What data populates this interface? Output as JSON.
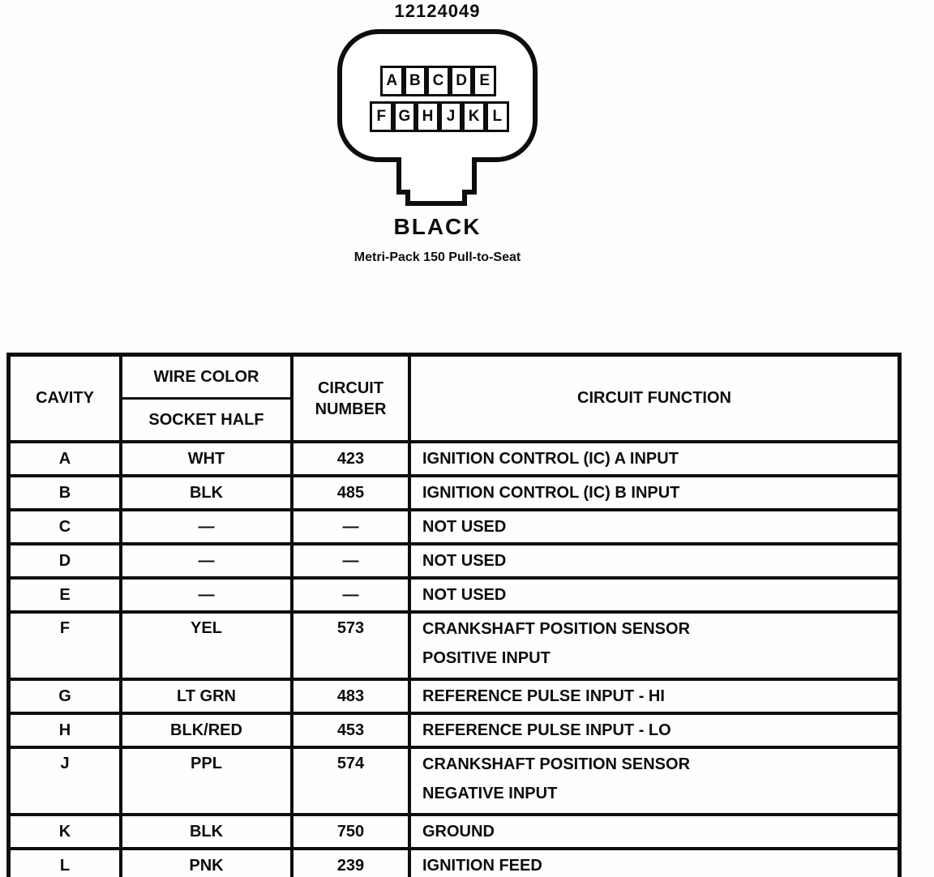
{
  "colors": {
    "ink": "#0d0d0d",
    "paper": "#fefefe"
  },
  "connector": {
    "part_number": "12124049",
    "color_label": "BLACK",
    "caption": "Metri-Pack 150 Pull-to-Seat",
    "pin_rows": [
      [
        "A",
        "B",
        "C",
        "D",
        "E"
      ],
      [
        "F",
        "G",
        "H",
        "J",
        "K",
        "L"
      ]
    ]
  },
  "table": {
    "headers": {
      "cavity": "CAVITY",
      "wire_color": "WIRE COLOR",
      "socket_half": "SOCKET HALF",
      "circuit_number": "CIRCUIT NUMBER",
      "circuit_function": "CIRCUIT FUNCTION"
    },
    "rows": [
      {
        "cavity": "A",
        "wire_color": "WHT",
        "circuit_number": "423",
        "circuit_function": [
          "IGNITION CONTROL (IC) A INPUT"
        ]
      },
      {
        "cavity": "B",
        "wire_color": "BLK",
        "circuit_number": "485",
        "circuit_function": [
          "IGNITION CONTROL (IC) B INPUT"
        ]
      },
      {
        "cavity": "C",
        "wire_color": "—",
        "circuit_number": "—",
        "circuit_function": [
          "NOT USED"
        ]
      },
      {
        "cavity": "D",
        "wire_color": "—",
        "circuit_number": "—",
        "circuit_function": [
          "NOT USED"
        ]
      },
      {
        "cavity": "E",
        "wire_color": "—",
        "circuit_number": "—",
        "circuit_function": [
          "NOT USED"
        ]
      },
      {
        "cavity": "F",
        "wire_color": "YEL",
        "circuit_number": "573",
        "circuit_function": [
          "CRANKSHAFT POSITION SENSOR",
          "POSITIVE INPUT"
        ]
      },
      {
        "cavity": "G",
        "wire_color": "LT GRN",
        "circuit_number": "483",
        "circuit_function": [
          "REFERENCE PULSE INPUT - HI"
        ]
      },
      {
        "cavity": "H",
        "wire_color": "BLK/RED",
        "circuit_number": "453",
        "circuit_function": [
          "REFERENCE PULSE INPUT - LO"
        ]
      },
      {
        "cavity": "J",
        "wire_color": "PPL",
        "circuit_number": "574",
        "circuit_function": [
          "CRANKSHAFT POSITION SENSOR",
          "NEGATIVE INPUT"
        ]
      },
      {
        "cavity": "K",
        "wire_color": "BLK",
        "circuit_number": "750",
        "circuit_function": [
          "GROUND"
        ]
      },
      {
        "cavity": "L",
        "wire_color": "PNK",
        "circuit_number": "239",
        "circuit_function": [
          "IGNITION FEED"
        ]
      }
    ]
  }
}
